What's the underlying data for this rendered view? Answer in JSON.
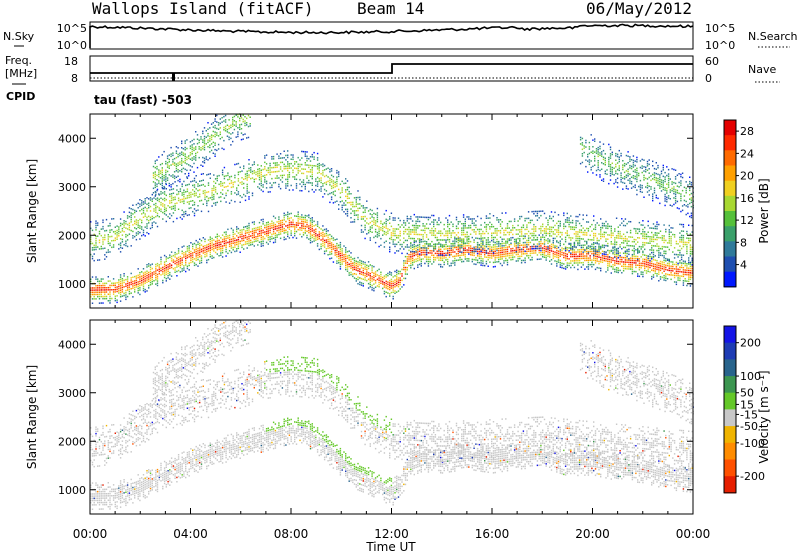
{
  "header": {
    "title": "Wallops Island (fitACF)",
    "beam": "Beam 14",
    "date": "06/May/2012"
  },
  "noise_panel": {
    "left_label": "N.Sky",
    "right_label": "N.Search",
    "left_ticks": [
      "10^5",
      "10^0"
    ],
    "right_ticks": [
      "10^5",
      "10^0"
    ]
  },
  "freq_panel": {
    "left_label_1": "Freq.",
    "left_label_2": "[MHz]",
    "right_label": "Nave",
    "left_ticks": [
      "18",
      "8"
    ],
    "right_ticks": [
      "60",
      "0"
    ],
    "cpid_label": "CPID",
    "cpid_text": "tau (fast) -503"
  },
  "colors": {
    "power": [
      "#0018ff",
      "#1f4fb0",
      "#2f7a9a",
      "#3aa06a",
      "#55c03a",
      "#a8d832",
      "#f0d020",
      "#ffa000",
      "#ff6a00",
      "#ff2a00",
      "#e40000"
    ],
    "velocity": [
      "#1414e6",
      "#1e3cb4",
      "#28648c",
      "#3c9650",
      "#64c828",
      "#c8c8c8",
      "#f0b400",
      "#ff8c00",
      "#ff5000",
      "#e61e00"
    ]
  },
  "chart_data": [
    {
      "type": "heatmap",
      "title": "",
      "xlabel": "Time UT",
      "ylabel": "Slant Range [km]",
      "x_ticks": [
        "00:00",
        "04:00",
        "08:00",
        "12:00",
        "16:00",
        "20:00",
        "00:00"
      ],
      "y_ticks": [
        1000,
        2000,
        3000,
        4000
      ],
      "xlim": [
        0,
        24
      ],
      "ylim": [
        500,
        4500
      ],
      "colorbar_label": "Power [dB]",
      "colorbar_ticks": [
        4,
        8,
        12,
        16,
        20,
        24,
        28
      ],
      "colorbar_range": [
        0,
        30
      ],
      "bands": [
        {
          "name": "main",
          "peak_dB": 27,
          "trace": [
            [
              0,
              870
            ],
            [
              1,
              880
            ],
            [
              2,
              1060
            ],
            [
              3,
              1330
            ],
            [
              4,
              1580
            ],
            [
              5,
              1790
            ],
            [
              6,
              1930
            ],
            [
              7,
              2080
            ],
            [
              8,
              2230
            ],
            [
              8.6,
              2180
            ],
            [
              9.3,
              1900
            ],
            [
              10,
              1550
            ],
            [
              10.5,
              1300
            ],
            [
              11,
              1200
            ],
            [
              11.5,
              1070
            ],
            [
              12,
              950
            ],
            [
              12.3,
              1050
            ],
            [
              12.7,
              1550
            ],
            [
              13.2,
              1650
            ],
            [
              14,
              1620
            ],
            [
              15,
              1700
            ],
            [
              16,
              1620
            ],
            [
              17,
              1700
            ],
            [
              18,
              1740
            ],
            [
              19,
              1560
            ],
            [
              20,
              1580
            ],
            [
              21,
              1460
            ],
            [
              22,
              1420
            ],
            [
              23,
              1280
            ],
            [
              24,
              1220
            ]
          ]
        },
        {
          "name": "upper",
          "peak_dB": 17,
          "trace": [
            [
              0,
              1880
            ],
            [
              1,
              1950
            ],
            [
              2,
              2350
            ],
            [
              3,
              2650
            ],
            [
              4,
              2800
            ],
            [
              5,
              2950
            ],
            [
              6,
              3100
            ],
            [
              7,
              3300
            ],
            [
              8,
              3350
            ],
            [
              9,
              3300
            ],
            [
              10,
              2900
            ],
            [
              11,
              2300
            ],
            [
              12,
              2050
            ],
            [
              14,
              2000
            ],
            [
              16,
              2050
            ],
            [
              18,
              2100
            ],
            [
              20,
              2000
            ],
            [
              22,
              1900
            ],
            [
              24,
              1800
            ]
          ]
        },
        {
          "name": "arc",
          "peak_dB": 15,
          "trace": [
            [
              2.5,
              3200
            ],
            [
              3.5,
              3500
            ],
            [
              4.5,
              3850
            ],
            [
              5.2,
              4150
            ],
            [
              5.8,
              4350
            ],
            [
              6.4,
              4450
            ]
          ]
        },
        {
          "name": "late",
          "peak_dB": 13,
          "trace": [
            [
              19.5,
              3800
            ],
            [
              20.5,
              3500
            ],
            [
              21.5,
              3300
            ],
            [
              22.5,
              3100
            ],
            [
              23.5,
              2900
            ],
            [
              24,
              2750
            ]
          ]
        }
      ]
    },
    {
      "type": "heatmap",
      "title": "",
      "xlabel": "Time UT",
      "ylabel": "Slant Range [km]",
      "x_ticks": [
        "00:00",
        "04:00",
        "08:00",
        "12:00",
        "16:00",
        "20:00",
        "00:00"
      ],
      "y_ticks": [
        1000,
        2000,
        3000,
        4000
      ],
      "xlim": [
        0,
        24
      ],
      "ylim": [
        500,
        4500
      ],
      "colorbar_label": "Velocity [m s⁻¹]",
      "colorbar_ticks": [
        200,
        100,
        50,
        15,
        -15,
        -50,
        -100,
        -200
      ],
      "colorbar_range": [
        -250,
        250
      ]
    }
  ],
  "footer": {
    "xlabel": "Time UT"
  }
}
